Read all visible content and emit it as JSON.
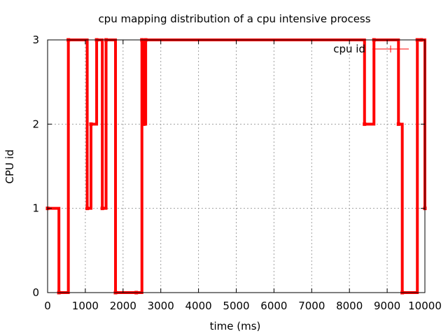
{
  "chart_data": {
    "type": "line",
    "title": "cpu mapping distribution of a cpu intensive process",
    "xlabel": "time (ms)",
    "ylabel": "CPU id",
    "xlim": [
      0,
      10000
    ],
    "ylim": [
      0,
      3
    ],
    "xticks": [
      0,
      1000,
      2000,
      3000,
      4000,
      5000,
      6000,
      7000,
      8000,
      9000,
      10000
    ],
    "yticks": [
      0,
      1,
      2,
      3
    ],
    "grid": true,
    "legend_position": "top-right",
    "series": [
      {
        "name": "cpu id",
        "color": "#ff0000",
        "style": "step-linespoints",
        "x": [
          0,
          300,
          550,
          1050,
          1150,
          1300,
          1450,
          1550,
          1800,
          2350,
          2500,
          2550,
          2600,
          8400,
          8650,
          9300,
          9400,
          9800,
          9900,
          10000
        ],
        "y": [
          1,
          0,
          3,
          1,
          2,
          3,
          1,
          3,
          0,
          0,
          3,
          2,
          3,
          2,
          3,
          2,
          0,
          3,
          3,
          1
        ]
      }
    ]
  }
}
